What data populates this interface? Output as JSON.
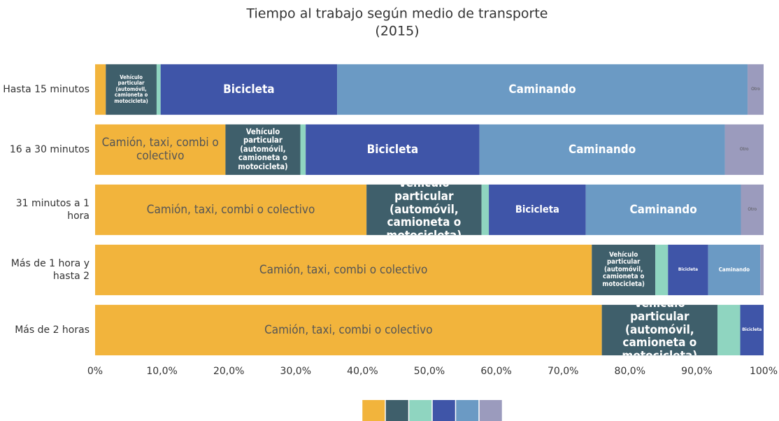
{
  "chart_data": {
    "type": "stacked_barh",
    "title": "Tiempo al trabajo según medio de transporte",
    "subtitle": "(2015)",
    "categories": [
      "Hasta 15 minutos",
      "16 a 30 minutos",
      "31 minutos a 1 hora",
      "Más de 1 hora y hasta 2",
      "Más de 2 horas"
    ],
    "series": [
      {
        "name": "Camión, taxi, combi o colectivo",
        "color": "#f2b43c",
        "values": [
          1.6,
          19.5,
          40.6,
          74.3,
          75.8
        ]
      },
      {
        "name": "Vehículo particular (automóvil, camioneta o motocicleta)",
        "color": "#3f5f6b",
        "values": [
          7.6,
          11.2,
          17.2,
          9.5,
          17.3
        ]
      },
      {
        "color": "#8fd5c0",
        "values": [
          0.6,
          0.8,
          1.1,
          1.9,
          3.4
        ]
      },
      {
        "name": "Bicicleta",
        "color": "#3f55a8",
        "values": [
          26.4,
          26.0,
          14.5,
          6.0,
          3.5
        ]
      },
      {
        "name": "Caminando",
        "color": "#6b9ac4",
        "values": [
          61.4,
          36.7,
          23.2,
          7.8,
          0
        ]
      },
      {
        "name": "Otro",
        "color": "#9b9bbd",
        "values": [
          2.4,
          5.8,
          3.4,
          0.5,
          0
        ]
      }
    ],
    "xlim": [
      0,
      100
    ],
    "xticks": [
      {
        "value": 0,
        "label": "0%"
      },
      {
        "value": 10,
        "label": "10,0%"
      },
      {
        "value": 20,
        "label": "20,0%"
      },
      {
        "value": 30,
        "label": "30,0%"
      },
      {
        "value": 40,
        "label": "40,0%"
      },
      {
        "value": 50,
        "label": "50,0%"
      },
      {
        "value": 60,
        "label": "60,0%"
      },
      {
        "value": 70,
        "label": "70,0%"
      },
      {
        "value": 80,
        "label": "80,0%"
      },
      {
        "value": 90,
        "label": "90,0%"
      },
      {
        "value": 100,
        "label": "100%"
      }
    ],
    "grid": false
  }
}
